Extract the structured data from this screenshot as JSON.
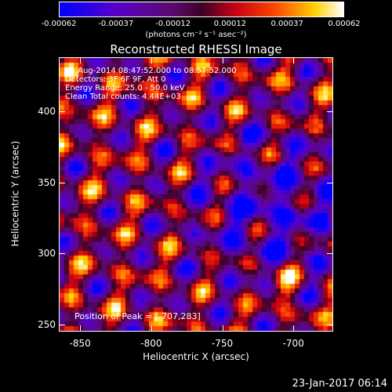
{
  "colorbar": {
    "tick_labels": [
      "-0.00062",
      "-0.00037",
      "-0.00012",
      "0.00012",
      "0.00037",
      "0.00062"
    ],
    "units_label": "(photons cm⁻² s⁻¹ asec⁻²)"
  },
  "title": "Reconstructed RHESSI Image",
  "info_lines": [
    "25-Aug-2014 08:47:52.000 to 08:57:52.000",
    "Detectors: 3F 6F 9F, Att 0",
    "Energy Range: 25.0 - 50.0 keV",
    "Clean     Total counts: 4.44E+03"
  ],
  "peak_text": "Position of Peak = [-707,283]",
  "footer_timestamp": "23-Jan-2017 06:14",
  "chart_data": {
    "type": "heatmap",
    "title": "Reconstructed RHESSI Image",
    "xlabel": "Heliocentric X (arcsec)",
    "ylabel": "Heliocentric Y (arcsec)",
    "xlim": [
      -865,
      -672
    ],
    "ylim": [
      245,
      438
    ],
    "x_ticks": [
      "-850",
      "-800",
      "-750",
      "-700"
    ],
    "y_ticks": [
      "250",
      "300",
      "350",
      "400"
    ],
    "x_tick_values": [
      -850,
      -800,
      -750,
      -700
    ],
    "y_tick_values": [
      250,
      300,
      350,
      400
    ],
    "colorbar_range": [
      -0.00062,
      0.00062
    ],
    "colormap": "blue-purple-red-yellow-white",
    "colors": {
      "low": "#0000ff",
      "mid": "#700050",
      "high": "#ff2000",
      "peak": "#ffffff"
    },
    "peak_position": [
      -707,
      283
    ]
  }
}
